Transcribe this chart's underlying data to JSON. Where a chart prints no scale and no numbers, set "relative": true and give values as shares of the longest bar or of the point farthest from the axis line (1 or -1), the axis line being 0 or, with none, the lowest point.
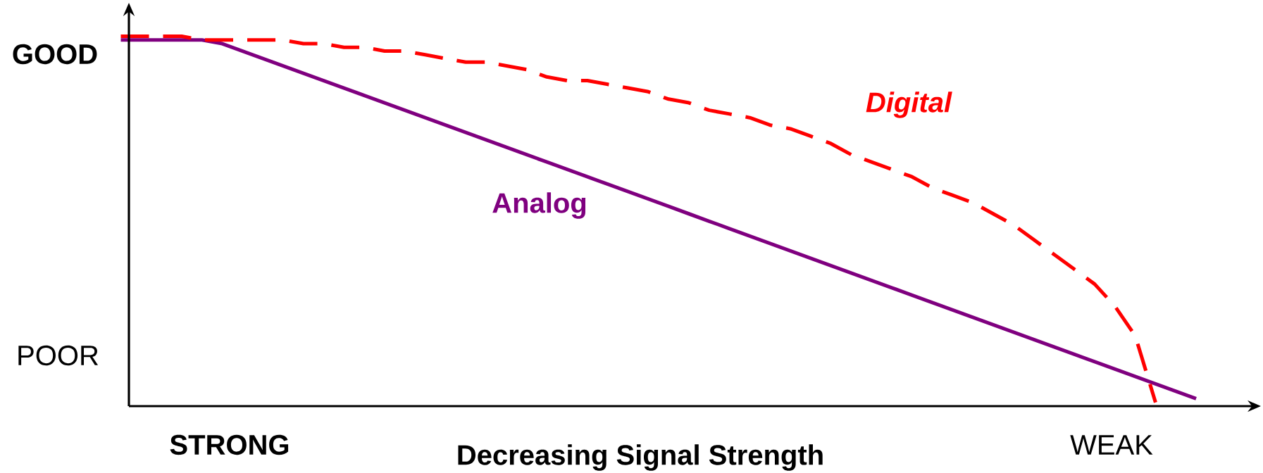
{
  "chart_data": {
    "type": "line",
    "relative": true,
    "xlabel": "Decreasing Signal Strength",
    "annotations": [
      "GOOD",
      "POOR",
      "STRONG",
      "WEAK"
    ],
    "categories": [
      null,
      null,
      null,
      null,
      null,
      null,
      null,
      null,
      null,
      null,
      null,
      null,
      null,
      null,
      null,
      null,
      null,
      null,
      null,
      null,
      null,
      null,
      null,
      null,
      null,
      null,
      null,
      null,
      null,
      null,
      null,
      null,
      null,
      null,
      null,
      null,
      null,
      null,
      null,
      null,
      null,
      null,
      null,
      null,
      null,
      null,
      null,
      null,
      null,
      null,
      null,
      null,
      null,
      null
    ],
    "series": [
      {
        "name": "Analog",
        "color": "#7f007f",
        "line_style": "solid",
        "values": [
          0.99,
          0.99,
          0.99,
          0.99,
          0.99,
          0.98,
          0.96,
          0.94,
          0.92,
          0.9,
          0.88,
          0.86,
          0.84,
          0.82,
          0.8,
          0.78,
          0.76,
          0.74,
          0.72,
          0.7,
          0.68,
          0.66,
          0.64,
          0.62,
          0.6,
          0.58,
          0.56,
          0.54,
          0.52,
          0.5,
          0.48,
          0.46,
          0.44,
          0.42,
          0.4,
          0.38,
          0.36,
          0.34,
          0.32,
          0.3,
          0.28,
          0.26,
          0.24,
          0.22,
          0.2,
          0.18,
          0.16,
          0.14,
          0.12,
          0.1,
          0.08,
          0.06,
          0.04,
          0.02
        ]
      },
      {
        "name": "Digital",
        "color": "#ff0000",
        "line_style": "dashed",
        "values": [
          1.0,
          1.0,
          1.0,
          1.0,
          0.99,
          0.99,
          0.99,
          0.99,
          0.99,
          0.98,
          0.98,
          0.97,
          0.97,
          0.96,
          0.96,
          0.95,
          0.94,
          0.93,
          0.93,
          0.92,
          0.91,
          0.89,
          0.88,
          0.88,
          0.87,
          0.86,
          0.85,
          0.83,
          0.82,
          0.8,
          0.79,
          0.78,
          0.76,
          0.75,
          0.73,
          0.71,
          0.68,
          0.66,
          0.64,
          0.62,
          0.59,
          0.57,
          0.55,
          0.52,
          0.49,
          0.45,
          0.41,
          0.37,
          0.33,
          0.27,
          0.19,
          0.01,
          null,
          null
        ]
      }
    ]
  }
}
